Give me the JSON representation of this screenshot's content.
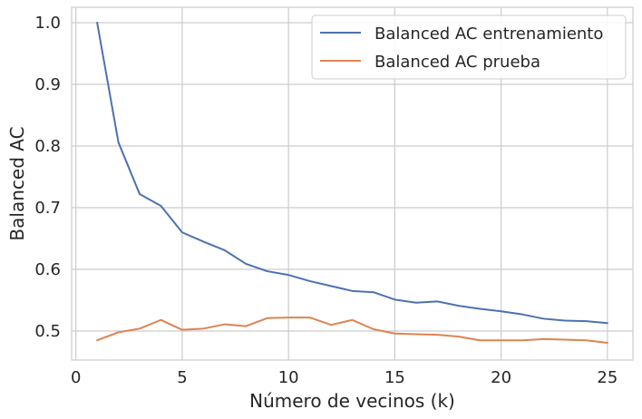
{
  "chart_data": {
    "type": "line",
    "title": "",
    "xlabel": "Número de vecinos (k)",
    "ylabel": "Balanced AC",
    "xlim": [
      -0.2,
      26.2
    ],
    "ylim": [
      0.453,
      1.025
    ],
    "xticks": [
      0,
      5,
      10,
      15,
      20,
      25
    ],
    "yticks": [
      0.5,
      0.6,
      0.7,
      0.8,
      0.9,
      1.0
    ],
    "ytick_labels": [
      "0.5",
      "0.6",
      "0.7",
      "0.8",
      "0.9",
      "1.0"
    ],
    "grid": true,
    "legend_position": "top-right",
    "x": [
      1,
      2,
      3,
      4,
      5,
      6,
      7,
      8,
      9,
      10,
      11,
      12,
      13,
      14,
      15,
      16,
      17,
      18,
      19,
      20,
      21,
      22,
      23,
      24,
      25
    ],
    "series": [
      {
        "name": "Balanced AC entrenamiento",
        "color": "#4c72b0",
        "values": [
          1.0,
          0.806,
          0.722,
          0.703,
          0.66,
          0.645,
          0.631,
          0.609,
          0.597,
          0.591,
          0.581,
          0.573,
          0.565,
          0.563,
          0.551,
          0.546,
          0.548,
          0.541,
          0.536,
          0.532,
          0.527,
          0.52,
          0.517,
          0.516,
          0.513
        ]
      },
      {
        "name": "Balanced AC prueba",
        "color": "#dd8452",
        "values": [
          0.485,
          0.498,
          0.504,
          0.518,
          0.502,
          0.504,
          0.511,
          0.508,
          0.521,
          0.522,
          0.522,
          0.51,
          0.518,
          0.503,
          0.496,
          0.495,
          0.494,
          0.491,
          0.485,
          0.485,
          0.485,
          0.487,
          0.486,
          0.485,
          0.481
        ]
      }
    ]
  }
}
